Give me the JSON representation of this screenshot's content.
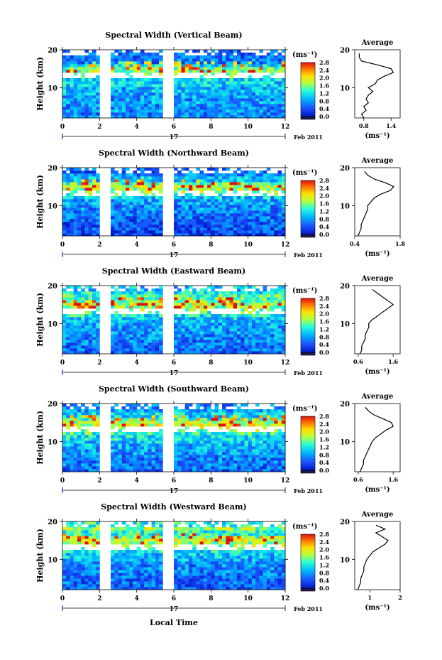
{
  "figure": {
    "xlabel": "Local Time",
    "date_day": "17",
    "date_label": "Feb 2011",
    "ylabel": "Height (km)",
    "unit_label": "(ms⁻¹)",
    "average_title": "Average"
  },
  "chart_data": [
    {
      "type": "heatmap",
      "title": "Spectral Width (Vertical Beam)",
      "xlabel": "Local Time",
      "ylabel": "Height (km)",
      "x_ticks": [
        0,
        2,
        4,
        6,
        8,
        10,
        12
      ],
      "xlim": [
        0,
        12
      ],
      "y_ticks": [
        10,
        20
      ],
      "ylim": [
        2,
        20
      ],
      "data_gaps_hours": [
        [
          2.0,
          2.6
        ],
        [
          5.4,
          5.9
        ]
      ],
      "colorbar": {
        "label": "(ms⁻¹)",
        "ticks": [
          0.0,
          0.4,
          0.8,
          1.2,
          1.6,
          2.0,
          2.4,
          2.8
        ],
        "tick_labels": [
          "0.0",
          "0.4",
          "0.8",
          "1.2",
          "1.6",
          "2.0",
          "2.4",
          "2.8"
        ]
      },
      "average_profile": {
        "title": "Average",
        "xlabel": "(ms⁻¹)",
        "x_ticks": [
          0.8,
          1.4
        ],
        "x_tick_labels": [
          "0.8",
          "1.4"
        ],
        "xlim": [
          0.6,
          1.6
        ],
        "height_km": [
          2,
          3,
          4,
          5,
          6,
          7,
          8,
          9,
          10,
          11,
          12,
          13,
          14,
          15,
          16,
          17,
          18,
          19
        ],
        "width_ms": [
          0.8,
          0.75,
          0.85,
          0.8,
          0.9,
          0.85,
          0.9,
          1.0,
          0.9,
          1.05,
          1.1,
          1.25,
          1.45,
          1.4,
          1.1,
          0.75,
          0.7,
          0.7
        ]
      }
    },
    {
      "type": "heatmap",
      "title": "Spectral Width (Northward Beam)",
      "xlabel": "Local Time",
      "ylabel": "Height (km)",
      "x_ticks": [
        0,
        2,
        4,
        6,
        8,
        10,
        12
      ],
      "xlim": [
        0,
        12
      ],
      "y_ticks": [
        10,
        20
      ],
      "ylim": [
        2,
        20
      ],
      "data_gaps_hours": [
        [
          2.0,
          2.6
        ],
        [
          5.4,
          5.9
        ]
      ],
      "colorbar": {
        "label": "(ms⁻¹)",
        "ticks": [
          0.0,
          0.4,
          0.8,
          1.2,
          1.6,
          2.0,
          2.4,
          2.8
        ],
        "tick_labels": [
          "0.0",
          "0.4",
          "0.8",
          "1.2",
          "1.6",
          "2.0",
          "2.4",
          "2.8"
        ]
      },
      "average_profile": {
        "title": "Average",
        "xlabel": "(ms⁻¹)",
        "x_ticks": [
          0.4,
          1.8
        ],
        "x_tick_labels": [
          "0.4",
          "1.8"
        ],
        "xlim": [
          0.4,
          1.8
        ],
        "height_km": [
          2,
          3,
          4,
          5,
          6,
          7,
          8,
          9,
          10,
          11,
          12,
          13,
          14,
          15,
          16,
          17,
          18,
          19
        ],
        "width_ms": [
          0.5,
          0.55,
          0.6,
          0.6,
          0.65,
          0.7,
          0.75,
          0.8,
          0.8,
          0.9,
          1.0,
          1.2,
          1.5,
          1.6,
          1.35,
          1.0,
          0.8,
          0.7
        ]
      }
    },
    {
      "type": "heatmap",
      "title": "Spectral Width (Eastward Beam)",
      "xlabel": "Local Time",
      "ylabel": "Height (km)",
      "x_ticks": [
        0,
        2,
        4,
        6,
        8,
        10,
        12
      ],
      "xlim": [
        0,
        12
      ],
      "y_ticks": [
        10,
        20
      ],
      "ylim": [
        2,
        20
      ],
      "data_gaps_hours": [
        [
          2.0,
          2.6
        ],
        [
          5.4,
          5.9
        ]
      ],
      "colorbar": {
        "label": "(ms⁻¹)",
        "ticks": [
          0.0,
          0.4,
          0.8,
          1.2,
          1.6,
          2.0,
          2.4,
          2.8
        ],
        "tick_labels": [
          "0.0",
          "0.4",
          "0.8",
          "1.2",
          "1.6",
          "2.0",
          "2.4",
          "2.8"
        ]
      },
      "average_profile": {
        "title": "Average",
        "xlabel": "(ms⁻¹)",
        "x_ticks": [
          0.6,
          1.6
        ],
        "x_tick_labels": [
          "0.6",
          "1.6"
        ],
        "xlim": [
          0.5,
          1.8
        ],
        "height_km": [
          2,
          3,
          4,
          5,
          6,
          7,
          8,
          9,
          10,
          11,
          12,
          13,
          14,
          15,
          16,
          17,
          18,
          19
        ],
        "width_ms": [
          0.65,
          0.7,
          0.7,
          0.75,
          0.8,
          0.8,
          0.85,
          0.9,
          0.9,
          1.0,
          1.15,
          1.3,
          1.45,
          1.6,
          1.45,
          1.3,
          1.15,
          1.0
        ]
      }
    },
    {
      "type": "heatmap",
      "title": "Spectral Width (Southward Beam)",
      "xlabel": "Local Time",
      "ylabel": "Height (km)",
      "x_ticks": [
        0,
        2,
        4,
        6,
        8,
        10,
        12
      ],
      "xlim": [
        0,
        12
      ],
      "y_ticks": [
        10,
        20
      ],
      "ylim": [
        2,
        20
      ],
      "data_gaps_hours": [
        [
          2.0,
          2.6
        ],
        [
          5.4,
          5.9
        ]
      ],
      "colorbar": {
        "label": "(ms⁻¹)",
        "ticks": [
          0.0,
          0.4,
          0.8,
          1.2,
          1.6,
          2.0,
          2.4,
          2.8
        ],
        "tick_labels": [
          "0.0",
          "0.4",
          "0.8",
          "1.2",
          "1.6",
          "2.0",
          "2.4",
          "2.8"
        ]
      },
      "average_profile": {
        "title": "Average",
        "xlabel": "(ms⁻¹)",
        "x_ticks": [
          0.6,
          1.6
        ],
        "x_tick_labels": [
          "0.6",
          "1.6"
        ],
        "xlim": [
          0.5,
          1.8
        ],
        "height_km": [
          2,
          3,
          4,
          5,
          6,
          7,
          8,
          9,
          10,
          11,
          12,
          13,
          14,
          15,
          16,
          17,
          18,
          19
        ],
        "width_ms": [
          0.65,
          0.7,
          0.75,
          0.75,
          0.8,
          0.85,
          0.9,
          0.95,
          1.0,
          1.1,
          1.25,
          1.4,
          1.6,
          1.55,
          1.3,
          1.05,
          0.9,
          0.8
        ]
      }
    },
    {
      "type": "heatmap",
      "title": "Spectral Width (Westward Beam)",
      "xlabel": "Local Time",
      "ylabel": "Height (km)",
      "x_ticks": [
        0,
        2,
        4,
        6,
        8,
        10,
        12
      ],
      "xlim": [
        0,
        12
      ],
      "y_ticks": [
        10,
        20
      ],
      "ylim": [
        2,
        20
      ],
      "data_gaps_hours": [
        [
          2.0,
          2.6
        ],
        [
          5.4,
          5.9
        ]
      ],
      "colorbar": {
        "label": "(ms⁻¹)",
        "ticks": [
          0.0,
          0.4,
          0.8,
          1.2,
          1.6,
          2.0,
          2.4,
          2.8
        ],
        "tick_labels": [
          "0.0",
          "0.4",
          "0.8",
          "1.2",
          "1.6",
          "2.0",
          "2.4",
          "2.8"
        ]
      },
      "average_profile": {
        "title": "Average",
        "xlabel": "(ms⁻¹)",
        "x_ticks": [
          1,
          2
        ],
        "x_tick_labels": [
          "1",
          "2"
        ],
        "xlim": [
          0.5,
          2.0
        ],
        "height_km": [
          2,
          3,
          4,
          5,
          6,
          7,
          8,
          9,
          10,
          11,
          12,
          13,
          14,
          15,
          16,
          17,
          18,
          19
        ],
        "width_ms": [
          0.6,
          0.65,
          0.7,
          0.7,
          0.75,
          0.8,
          0.8,
          0.85,
          0.9,
          1.0,
          1.1,
          1.3,
          1.5,
          1.6,
          1.4,
          1.2,
          1.5,
          1.2
        ]
      }
    }
  ]
}
